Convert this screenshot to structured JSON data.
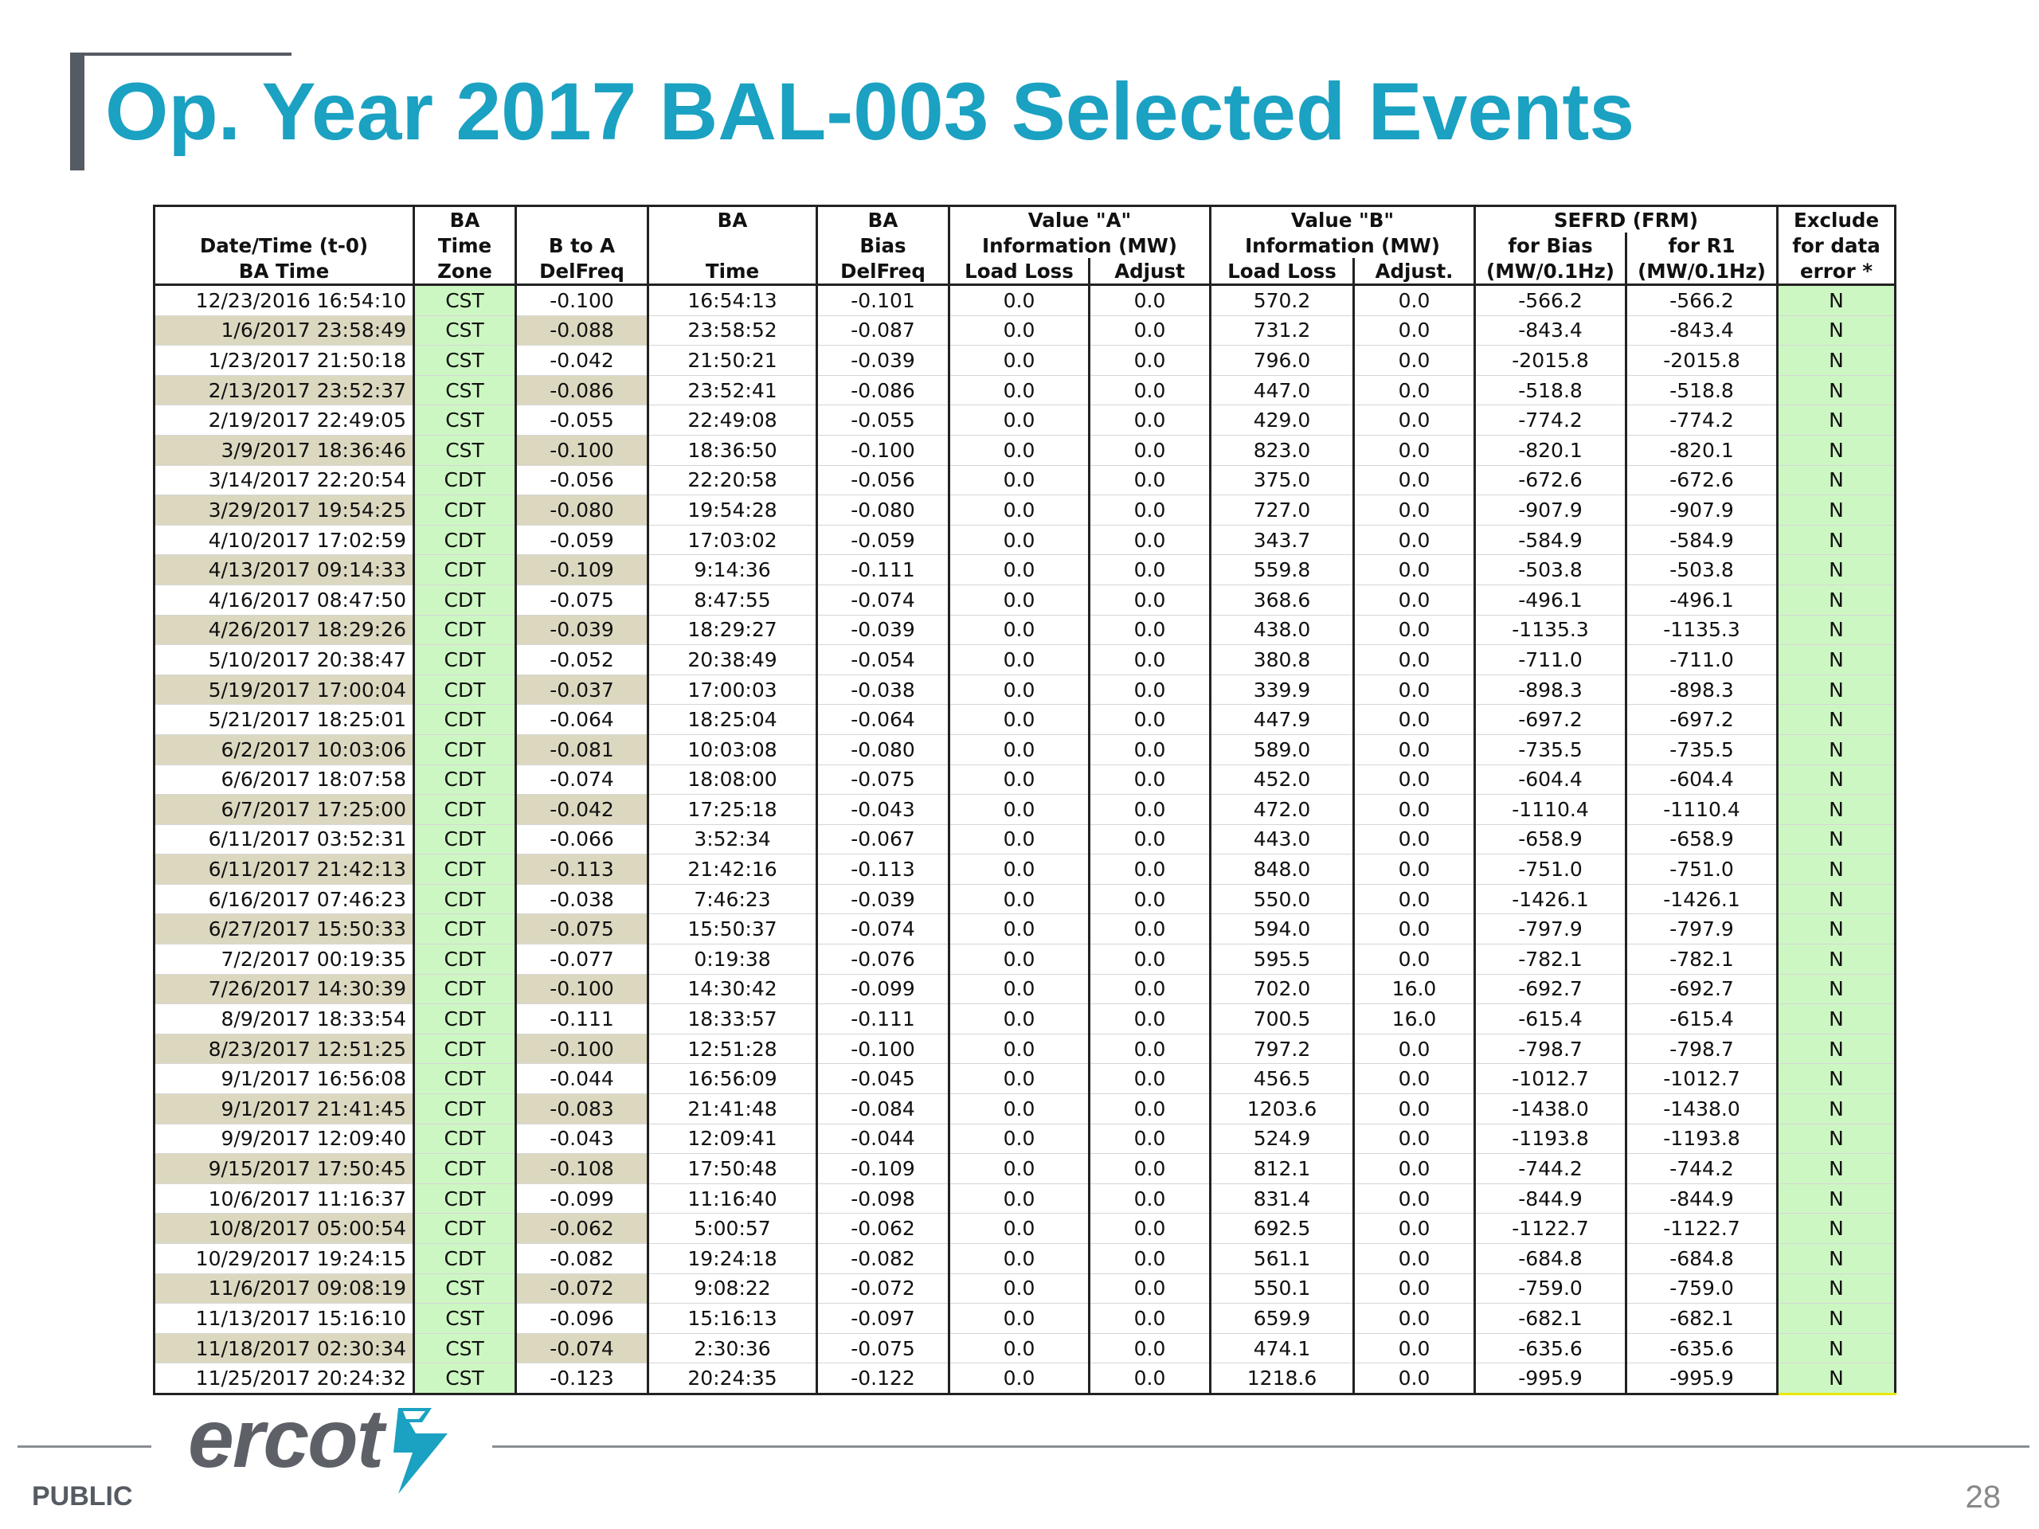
{
  "title": "Op. Year 2017 BAL-003 Selected Events",
  "header": {
    "dt": [
      "",
      "Date/Time (t-0)",
      "BA Time"
    ],
    "zone": [
      "BA",
      "Time",
      "Zone"
    ],
    "btoa": [
      "",
      "B to A",
      "DelFreq"
    ],
    "batime": [
      "BA",
      "",
      "Time"
    ],
    "babias": [
      "BA",
      "Bias",
      "DelFreq"
    ],
    "valueA": [
      "Value \"A\"",
      "Information (MW)"
    ],
    "valueA_cols": [
      "Load Loss",
      "Adjust"
    ],
    "valueB": [
      "Value \"B\"",
      "Information (MW)"
    ],
    "valueB_cols": [
      "Load Loss",
      "Adjust."
    ],
    "sefrd": [
      "SEFRD (FRM)"
    ],
    "sefrd_cols": [
      [
        "for Bias",
        "(MW/0.1Hz)"
      ],
      [
        "for R1",
        "(MW/0.1Hz)"
      ]
    ],
    "excl": [
      "Exclude",
      "for data",
      "error *"
    ]
  },
  "rows": [
    [
      "12/23/2016 16:54:10",
      "CST",
      "-0.100",
      "16:54:13",
      "-0.101",
      "0.0",
      "0.0",
      "570.2",
      "0.0",
      "-566.2",
      "-566.2",
      "N"
    ],
    [
      "1/6/2017 23:58:49",
      "CST",
      "-0.088",
      "23:58:52",
      "-0.087",
      "0.0",
      "0.0",
      "731.2",
      "0.0",
      "-843.4",
      "-843.4",
      "N"
    ],
    [
      "1/23/2017 21:50:18",
      "CST",
      "-0.042",
      "21:50:21",
      "-0.039",
      "0.0",
      "0.0",
      "796.0",
      "0.0",
      "-2015.8",
      "-2015.8",
      "N"
    ],
    [
      "2/13/2017 23:52:37",
      "CST",
      "-0.086",
      "23:52:41",
      "-0.086",
      "0.0",
      "0.0",
      "447.0",
      "0.0",
      "-518.8",
      "-518.8",
      "N"
    ],
    [
      "2/19/2017 22:49:05",
      "CST",
      "-0.055",
      "22:49:08",
      "-0.055",
      "0.0",
      "0.0",
      "429.0",
      "0.0",
      "-774.2",
      "-774.2",
      "N"
    ],
    [
      "3/9/2017 18:36:46",
      "CST",
      "-0.100",
      "18:36:50",
      "-0.100",
      "0.0",
      "0.0",
      "823.0",
      "0.0",
      "-820.1",
      "-820.1",
      "N"
    ],
    [
      "3/14/2017 22:20:54",
      "CDT",
      "-0.056",
      "22:20:58",
      "-0.056",
      "0.0",
      "0.0",
      "375.0",
      "0.0",
      "-672.6",
      "-672.6",
      "N"
    ],
    [
      "3/29/2017 19:54:25",
      "CDT",
      "-0.080",
      "19:54:28",
      "-0.080",
      "0.0",
      "0.0",
      "727.0",
      "0.0",
      "-907.9",
      "-907.9",
      "N"
    ],
    [
      "4/10/2017 17:02:59",
      "CDT",
      "-0.059",
      "17:03:02",
      "-0.059",
      "0.0",
      "0.0",
      "343.7",
      "0.0",
      "-584.9",
      "-584.9",
      "N"
    ],
    [
      "4/13/2017 09:14:33",
      "CDT",
      "-0.109",
      "9:14:36",
      "-0.111",
      "0.0",
      "0.0",
      "559.8",
      "0.0",
      "-503.8",
      "-503.8",
      "N"
    ],
    [
      "4/16/2017 08:47:50",
      "CDT",
      "-0.075",
      "8:47:55",
      "-0.074",
      "0.0",
      "0.0",
      "368.6",
      "0.0",
      "-496.1",
      "-496.1",
      "N"
    ],
    [
      "4/26/2017 18:29:26",
      "CDT",
      "-0.039",
      "18:29:27",
      "-0.039",
      "0.0",
      "0.0",
      "438.0",
      "0.0",
      "-1135.3",
      "-1135.3",
      "N"
    ],
    [
      "5/10/2017 20:38:47",
      "CDT",
      "-0.052",
      "20:38:49",
      "-0.054",
      "0.0",
      "0.0",
      "380.8",
      "0.0",
      "-711.0",
      "-711.0",
      "N"
    ],
    [
      "5/19/2017 17:00:04",
      "CDT",
      "-0.037",
      "17:00:03",
      "-0.038",
      "0.0",
      "0.0",
      "339.9",
      "0.0",
      "-898.3",
      "-898.3",
      "N"
    ],
    [
      "5/21/2017 18:25:01",
      "CDT",
      "-0.064",
      "18:25:04",
      "-0.064",
      "0.0",
      "0.0",
      "447.9",
      "0.0",
      "-697.2",
      "-697.2",
      "N"
    ],
    [
      "6/2/2017 10:03:06",
      "CDT",
      "-0.081",
      "10:03:08",
      "-0.080",
      "0.0",
      "0.0",
      "589.0",
      "0.0",
      "-735.5",
      "-735.5",
      "N"
    ],
    [
      "6/6/2017 18:07:58",
      "CDT",
      "-0.074",
      "18:08:00",
      "-0.075",
      "0.0",
      "0.0",
      "452.0",
      "0.0",
      "-604.4",
      "-604.4",
      "N"
    ],
    [
      "6/7/2017 17:25:00",
      "CDT",
      "-0.042",
      "17:25:18",
      "-0.043",
      "0.0",
      "0.0",
      "472.0",
      "0.0",
      "-1110.4",
      "-1110.4",
      "N"
    ],
    [
      "6/11/2017 03:52:31",
      "CDT",
      "-0.066",
      "3:52:34",
      "-0.067",
      "0.0",
      "0.0",
      "443.0",
      "0.0",
      "-658.9",
      "-658.9",
      "N"
    ],
    [
      "6/11/2017 21:42:13",
      "CDT",
      "-0.113",
      "21:42:16",
      "-0.113",
      "0.0",
      "0.0",
      "848.0",
      "0.0",
      "-751.0",
      "-751.0",
      "N"
    ],
    [
      "6/16/2017 07:46:23",
      "CDT",
      "-0.038",
      "7:46:23",
      "-0.039",
      "0.0",
      "0.0",
      "550.0",
      "0.0",
      "-1426.1",
      "-1426.1",
      "N"
    ],
    [
      "6/27/2017 15:50:33",
      "CDT",
      "-0.075",
      "15:50:37",
      "-0.074",
      "0.0",
      "0.0",
      "594.0",
      "0.0",
      "-797.9",
      "-797.9",
      "N"
    ],
    [
      "7/2/2017 00:19:35",
      "CDT",
      "-0.077",
      "0:19:38",
      "-0.076",
      "0.0",
      "0.0",
      "595.5",
      "0.0",
      "-782.1",
      "-782.1",
      "N"
    ],
    [
      "7/26/2017 14:30:39",
      "CDT",
      "-0.100",
      "14:30:42",
      "-0.099",
      "0.0",
      "0.0",
      "702.0",
      "16.0",
      "-692.7",
      "-692.7",
      "N"
    ],
    [
      "8/9/2017 18:33:54",
      "CDT",
      "-0.111",
      "18:33:57",
      "-0.111",
      "0.0",
      "0.0",
      "700.5",
      "16.0",
      "-615.4",
      "-615.4",
      "N"
    ],
    [
      "8/23/2017 12:51:25",
      "CDT",
      "-0.100",
      "12:51:28",
      "-0.100",
      "0.0",
      "0.0",
      "797.2",
      "0.0",
      "-798.7",
      "-798.7",
      "N"
    ],
    [
      "9/1/2017 16:56:08",
      "CDT",
      "-0.044",
      "16:56:09",
      "-0.045",
      "0.0",
      "0.0",
      "456.5",
      "0.0",
      "-1012.7",
      "-1012.7",
      "N"
    ],
    [
      "9/1/2017 21:41:45",
      "CDT",
      "-0.083",
      "21:41:48",
      "-0.084",
      "0.0",
      "0.0",
      "1203.6",
      "0.0",
      "-1438.0",
      "-1438.0",
      "N"
    ],
    [
      "9/9/2017 12:09:40",
      "CDT",
      "-0.043",
      "12:09:41",
      "-0.044",
      "0.0",
      "0.0",
      "524.9",
      "0.0",
      "-1193.8",
      "-1193.8",
      "N"
    ],
    [
      "9/15/2017 17:50:45",
      "CDT",
      "-0.108",
      "17:50:48",
      "-0.109",
      "0.0",
      "0.0",
      "812.1",
      "0.0",
      "-744.2",
      "-744.2",
      "N"
    ],
    [
      "10/6/2017 11:16:37",
      "CDT",
      "-0.099",
      "11:16:40",
      "-0.098",
      "0.0",
      "0.0",
      "831.4",
      "0.0",
      "-844.9",
      "-844.9",
      "N"
    ],
    [
      "10/8/2017 05:00:54",
      "CDT",
      "-0.062",
      "5:00:57",
      "-0.062",
      "0.0",
      "0.0",
      "692.5",
      "0.0",
      "-1122.7",
      "-1122.7",
      "N"
    ],
    [
      "10/29/2017 19:24:15",
      "CDT",
      "-0.082",
      "19:24:18",
      "-0.082",
      "0.0",
      "0.0",
      "561.1",
      "0.0",
      "-684.8",
      "-684.8",
      "N"
    ],
    [
      "11/6/2017 09:08:19",
      "CST",
      "-0.072",
      "9:08:22",
      "-0.072",
      "0.0",
      "0.0",
      "550.1",
      "0.0",
      "-759.0",
      "-759.0",
      "N"
    ],
    [
      "11/13/2017 15:16:10",
      "CST",
      "-0.096",
      "15:16:13",
      "-0.097",
      "0.0",
      "0.0",
      "659.9",
      "0.0",
      "-682.1",
      "-682.1",
      "N"
    ],
    [
      "11/18/2017 02:30:34",
      "CST",
      "-0.074",
      "2:30:36",
      "-0.075",
      "0.0",
      "0.0",
      "474.1",
      "0.0",
      "-635.6",
      "-635.6",
      "N"
    ],
    [
      "11/25/2017 20:24:32",
      "CST",
      "-0.123",
      "20:24:35",
      "-0.122",
      "0.0",
      "0.0",
      "1218.6",
      "0.0",
      "-995.9",
      "-995.9",
      "N"
    ]
  ],
  "footer": {
    "logo_text": "ercot",
    "logo_mark_icon": "ercot-lightning-mark-icon",
    "public_label": "PUBLIC",
    "page_number": "28"
  }
}
